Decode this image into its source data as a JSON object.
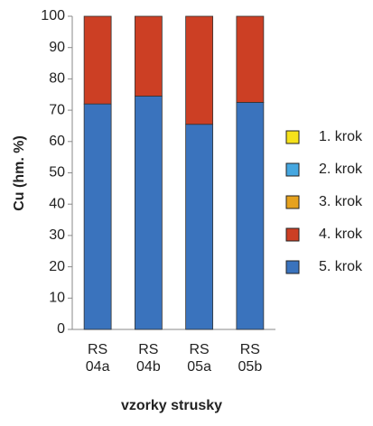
{
  "chart_data": {
    "type": "stacked-bar",
    "y_label": "Cu (hm. %)",
    "x_label": "vzorky strusky",
    "categories": [
      "RS 04a",
      "RS 04b",
      "RS 05a",
      "RS 05b"
    ],
    "series": [
      {
        "name": "1. krok",
        "color": "#f5e11b",
        "values": [
          0,
          0,
          0,
          0
        ]
      },
      {
        "name": "2. krok",
        "color": "#45a7e0",
        "values": [
          0,
          0,
          0,
          0
        ]
      },
      {
        "name": "3. krok",
        "color": "#e6a21e",
        "values": [
          0,
          0,
          0,
          0
        ]
      },
      {
        "name": "4. krok",
        "color": "#cc3f24",
        "values": [
          28,
          25.5,
          34.5,
          27.5
        ]
      },
      {
        "name": "5. krok",
        "color": "#3a73bd",
        "values": [
          72,
          74.5,
          65.5,
          72.5
        ]
      }
    ],
    "ylim": [
      0,
      100
    ],
    "yticks": [
      0,
      10,
      20,
      30,
      40,
      50,
      60,
      70,
      80,
      90,
      100
    ]
  }
}
